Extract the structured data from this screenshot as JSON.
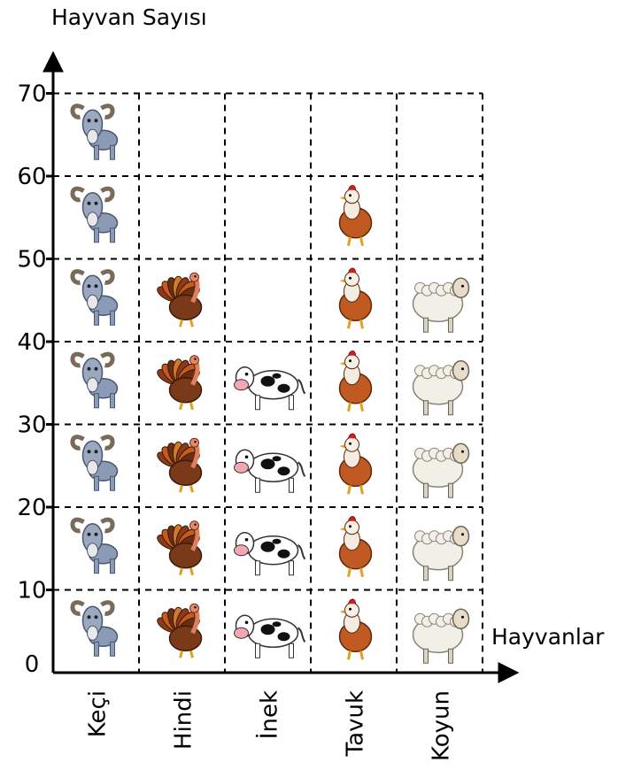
{
  "chart_data": {
    "type": "bar",
    "title": "",
    "ylabel": "Hayvan Sayısı",
    "xlabel": "Hayvanlar",
    "categories": [
      "Keçi",
      "Hindi",
      "İnek",
      "Tavuk",
      "Koyun"
    ],
    "values": [
      70,
      50,
      40,
      60,
      50
    ],
    "icon_unit": 10,
    "icons": [
      "goat-icon",
      "turkey-icon",
      "cow-icon",
      "chicken-icon",
      "sheep-icon"
    ],
    "yticks": [
      0,
      10,
      20,
      30,
      40,
      50,
      60,
      70
    ],
    "ylim": [
      0,
      70
    ],
    "grid": true,
    "grid_style": "dashed"
  }
}
